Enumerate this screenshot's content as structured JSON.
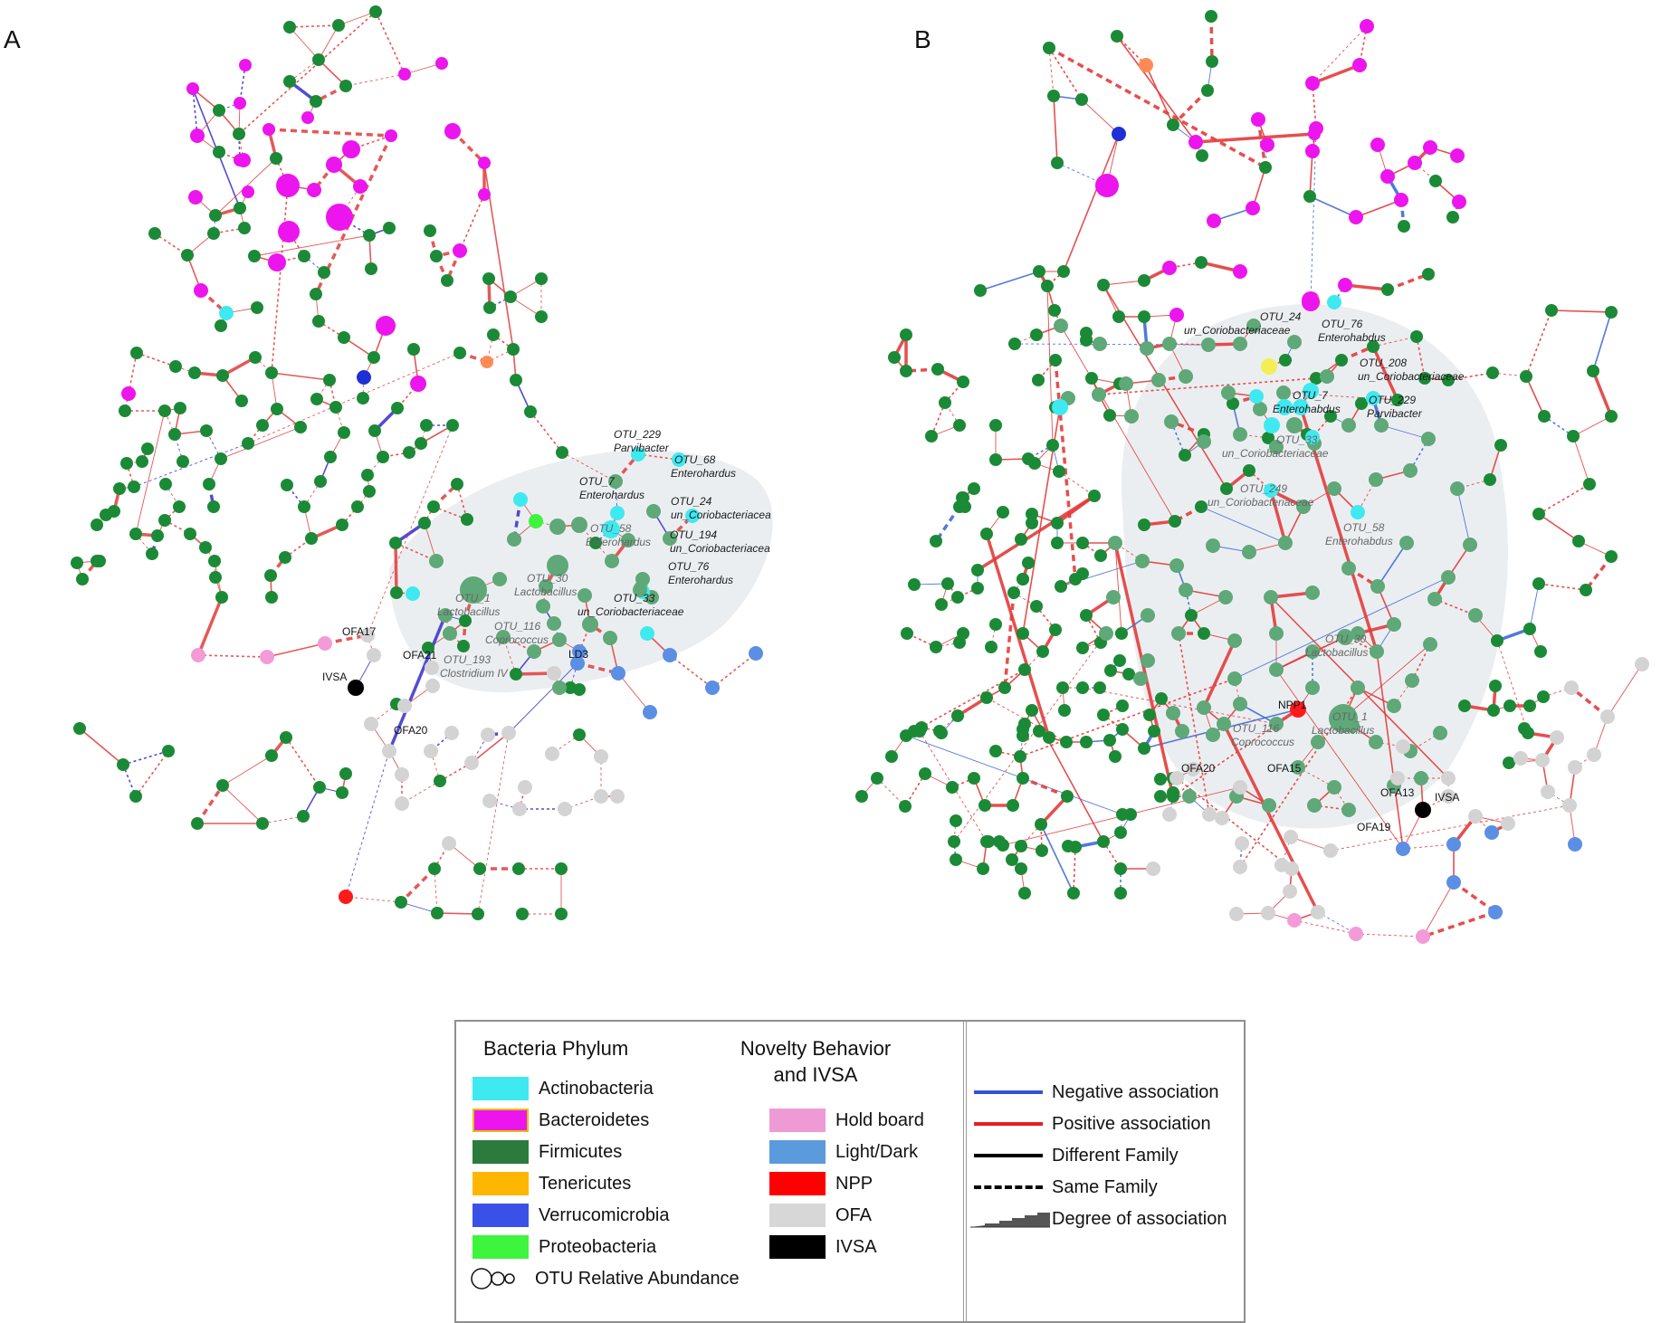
{
  "panels": [
    {
      "label": "A",
      "nodes": [
        {
          "id": "OTU_229",
          "name": "OTU_229",
          "genus": "Parvibacter"
        },
        {
          "id": "OTU_68",
          "name": "OTU_68",
          "genus": "Enterohardus"
        },
        {
          "id": "OTU_7",
          "name": "OTU_7",
          "genus": "Enterohardus"
        },
        {
          "id": "OTU_24",
          "name": "OTU_24",
          "genus": "un_Coriobacteriacea"
        },
        {
          "id": "OTU_58",
          "name": "OTU_58",
          "genus": "Enterohardus"
        },
        {
          "id": "OTU_194",
          "name": "OTU_194",
          "genus": "un_Coriobacteriacea"
        },
        {
          "id": "OTU_76",
          "name": "OTU_76",
          "genus": "Enterohardus"
        },
        {
          "id": "OTU_30",
          "name": "OTU_30",
          "genus": "Lactobacillus"
        },
        {
          "id": "OTU_1",
          "name": "OTU_1",
          "genus": "Lactobacillus"
        },
        {
          "id": "OTU_33",
          "name": "OTU_33",
          "genus": "un_Coriobacteriaceae"
        },
        {
          "id": "OTU_116",
          "name": "OTU_116",
          "genus": "Coprococcus"
        },
        {
          "id": "OTU_193",
          "name": "OTU_193",
          "genus": "Clostridium IV"
        },
        {
          "id": "OFA21",
          "name": "OFA21"
        },
        {
          "id": "LD3",
          "name": "LD3"
        },
        {
          "id": "OFA17",
          "name": "OFA17"
        },
        {
          "id": "IVSA",
          "name": "IVSA"
        },
        {
          "id": "OFA20",
          "name": "OFA20"
        }
      ]
    },
    {
      "label": "B",
      "nodes": [
        {
          "id": "OTU_24",
          "name": "OTU_24",
          "genus": "un_Coriobacteriaceae"
        },
        {
          "id": "OTU_76",
          "name": "OTU_76",
          "genus": "Enterohabdus"
        },
        {
          "id": "OTU_208",
          "name": "OTU_208",
          "genus": "un_Coriobacteriaceae"
        },
        {
          "id": "OTU_7",
          "name": "OTU_7",
          "genus": "Enterohabdus"
        },
        {
          "id": "OTU_229",
          "name": "OTU_229",
          "genus": "Parvibacter"
        },
        {
          "id": "OTU_33",
          "name": "OTU_33",
          "genus": "un_Coriobacteriaceae"
        },
        {
          "id": "OTU_249",
          "name": "OTU_249",
          "genus": "un_Coriobacteriaceae"
        },
        {
          "id": "OTU_58",
          "name": "OTU_58",
          "genus": "Enterohabdus"
        },
        {
          "id": "OTU_30",
          "name": "OTU_30",
          "genus": "Lactobacillus"
        },
        {
          "id": "NPP1",
          "name": "NPP1"
        },
        {
          "id": "OTU_1",
          "name": "OTU_1",
          "genus": "Lactobacillus"
        },
        {
          "id": "OTU_116",
          "name": "OTU_116",
          "genus": "Coprococcus"
        },
        {
          "id": "OFA20",
          "name": "OFA20"
        },
        {
          "id": "OFA15",
          "name": "OFA15"
        },
        {
          "id": "OFA13",
          "name": "OFA13"
        },
        {
          "id": "IVSA",
          "name": "IVSA"
        },
        {
          "id": "OFA19",
          "name": "OFA19"
        }
      ]
    }
  ],
  "colors": {
    "actinobacteria": "#3fe9f0",
    "bacteroidetes": "#ec15ee",
    "firmicutes": "#1b8a36",
    "tenericutes": "#ffb600",
    "verrucomicrobia": "#1f2fd6",
    "proteobacteria": "#3cf53c",
    "hold_board": "#f39bd8",
    "light_dark": "#5b8fe3",
    "npp": "#ff1a1a",
    "ofa": "#d3d3d3",
    "ivsa": "#000000",
    "negative": "#3152d8",
    "positive": "#e32121",
    "core_hull": "#e7ebef"
  },
  "legend": {
    "phylum_title": "Bacteria Phylum",
    "phylum_items": [
      {
        "label": "Actinobacteria",
        "color": "#3fe9f0"
      },
      {
        "label": "Bacteroidetes",
        "color": "#ec15ee",
        "border": "#e0c000"
      },
      {
        "label": "Firmicutes",
        "color": "#2c7a3c"
      },
      {
        "label": "Tenericutes",
        "color": "#ffb600"
      },
      {
        "label": "Verrucomicrobia",
        "color": "#3a51e8"
      },
      {
        "label": "Proteobacteria",
        "color": "#3cf53c"
      }
    ],
    "abundance_label": "OTU Relative Abundance",
    "behavior_title_line1": "Novelty Behavior",
    "behavior_title_line2": "and IVSA",
    "behavior_items": [
      {
        "label": "Hold board",
        "color": "#ee9ad4"
      },
      {
        "label": "Light/Dark",
        "color": "#5b9bdc"
      },
      {
        "label": "NPP",
        "color": "#ff0000"
      },
      {
        "label": "OFA",
        "color": "#d7d7d7"
      },
      {
        "label": "IVSA",
        "color": "#000000"
      }
    ],
    "edge_items": [
      {
        "label": "Negative association",
        "kind": "negative"
      },
      {
        "label": "Positive association",
        "kind": "positive"
      },
      {
        "label": "Different Family",
        "kind": "different"
      },
      {
        "label": "Same Family",
        "kind": "same"
      },
      {
        "label": "Degree of association",
        "kind": "degree"
      }
    ]
  }
}
